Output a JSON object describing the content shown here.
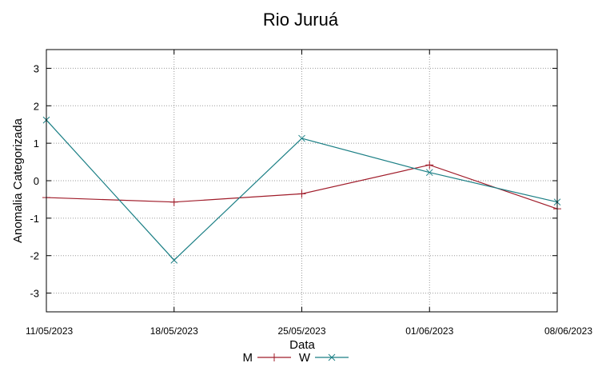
{
  "chart_data": {
    "type": "line",
    "title": "Rio Juruá",
    "xlabel": "Data",
    "ylabel": "Anomalia Categorizada",
    "categories": [
      "11/05/2023",
      "18/05/2023",
      "25/05/2023",
      "01/06/2023",
      "08/06/2023"
    ],
    "yticks": [
      -3,
      -2,
      -1,
      0,
      1,
      2,
      3
    ],
    "ylim": [
      -3.5,
      3.5
    ],
    "grid": true,
    "legend_position": "bottom-center",
    "series": [
      {
        "name": "M",
        "color": "#a01c2a",
        "marker": "plus",
        "values": [
          -0.45,
          -0.57,
          -0.35,
          0.42,
          -0.75
        ]
      },
      {
        "name": "W",
        "color": "#1b7f85",
        "marker": "cross",
        "values": [
          1.62,
          -2.12,
          1.13,
          0.22,
          -0.57
        ]
      }
    ]
  }
}
